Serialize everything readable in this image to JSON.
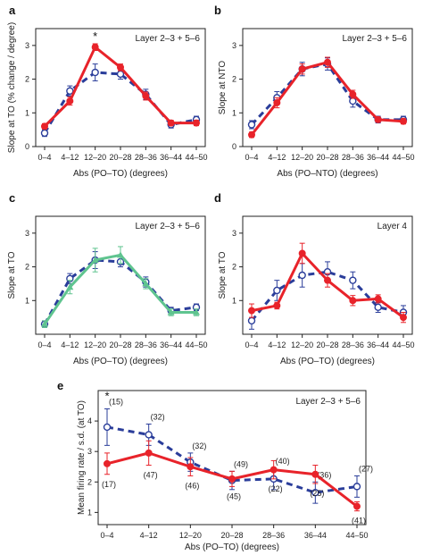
{
  "colors": {
    "red": "#e8232a",
    "blue": "#2a3d9a",
    "green": "#5fc48f"
  },
  "panels": [
    {
      "id": "a",
      "letter": "a",
      "tag": "Layer 2–3 + 5–6",
      "ylabel": "Slope at TO (% change / degree)",
      "xlabel": "Abs (PO–TO) (degrees)",
      "star_label": "*"
    },
    {
      "id": "b",
      "letter": "b",
      "tag": "Layer 2–3 + 5–6",
      "ylabel": "Slope at NTO",
      "xlabel": "Abs (PO–NTO) (degrees)"
    },
    {
      "id": "c",
      "letter": "c",
      "tag": "Layer 2–3 + 5–6",
      "ylabel": "Slope at TO",
      "xlabel": "Abs (PO–TO) (degrees)"
    },
    {
      "id": "d",
      "letter": "d",
      "tag": "Layer 4",
      "ylabel": "Slope at TO",
      "xlabel": "Abs (PO–TO) (degrees)"
    },
    {
      "id": "e",
      "letter": "e",
      "tag": "Layer 2–3 + 5–6",
      "ylabel": "Mean firing rate / s.d. (at TO)",
      "xlabel": "Abs (PO–TO) (degrees)",
      "star_label": "*"
    }
  ],
  "chart_data": [
    {
      "panel": "a",
      "type": "line",
      "categories": [
        "0–4",
        "4–12",
        "12–20",
        "20–28",
        "28–36",
        "36–44",
        "44–50"
      ],
      "ylim": [
        0,
        3.5
      ],
      "yticks": [
        "0",
        "1",
        "2",
        "3"
      ],
      "series": [
        {
          "color": "red",
          "style": "solid",
          "marker": "filled-circle",
          "values": [
            0.6,
            1.35,
            2.95,
            2.35,
            1.5,
            0.7,
            0.7
          ],
          "errors": [
            0.08,
            0.12,
            0.1,
            0.1,
            0.12,
            0.08,
            0.08
          ]
        },
        {
          "color": "blue",
          "style": "dashed",
          "marker": "open-circle",
          "values": [
            0.4,
            1.65,
            2.2,
            2.15,
            1.55,
            0.65,
            0.8
          ],
          "errors": [
            0.1,
            0.15,
            0.25,
            0.15,
            0.15,
            0.1,
            0.1
          ]
        }
      ],
      "annotations": [
        {
          "text": "*",
          "category": "12–20"
        }
      ]
    },
    {
      "panel": "b",
      "type": "line",
      "categories": [
        "0–4",
        "4–12",
        "12–20",
        "20–28",
        "28–36",
        "36–44",
        "44–50"
      ],
      "ylim": [
        0,
        3.5
      ],
      "yticks": [
        "0",
        "1",
        "2",
        "3"
      ],
      "series": [
        {
          "color": "red",
          "style": "solid",
          "marker": "filled-circle",
          "values": [
            0.35,
            1.3,
            2.3,
            2.5,
            1.55,
            0.8,
            0.75
          ],
          "errors": [
            0.08,
            0.15,
            0.15,
            0.15,
            0.12,
            0.08,
            0.08
          ]
        },
        {
          "color": "blue",
          "style": "dashed",
          "marker": "open-circle",
          "values": [
            0.65,
            1.45,
            2.3,
            2.45,
            1.35,
            0.8,
            0.8
          ],
          "errors": [
            0.12,
            0.18,
            0.2,
            0.18,
            0.18,
            0.1,
            0.1
          ]
        }
      ]
    },
    {
      "panel": "c",
      "type": "line",
      "categories": [
        "0–4",
        "4–12",
        "12–20",
        "20–28",
        "28–36",
        "36–44",
        "44–50"
      ],
      "ylim": [
        0,
        3.5
      ],
      "yticks": [
        "1",
        "2",
        "3"
      ],
      "series": [
        {
          "color": "green",
          "style": "solid",
          "marker": "triangle",
          "values": [
            0.3,
            1.4,
            2.2,
            2.35,
            1.5,
            0.65,
            0.65
          ],
          "errors": [
            0.1,
            0.2,
            0.35,
            0.25,
            0.15,
            0.1,
            0.1
          ]
        },
        {
          "color": "blue",
          "style": "dashed",
          "marker": "open-circle",
          "values": [
            0.3,
            1.65,
            2.2,
            2.15,
            1.55,
            0.7,
            0.8
          ],
          "errors": [
            0.1,
            0.15,
            0.25,
            0.15,
            0.15,
            0.1,
            0.1
          ]
        }
      ]
    },
    {
      "panel": "d",
      "type": "line",
      "categories": [
        "0–4",
        "4–12",
        "12–20",
        "20–28",
        "28–36",
        "36–44",
        "44–50"
      ],
      "ylim": [
        0,
        3.5
      ],
      "yticks": [
        "1",
        "2",
        "3"
      ],
      "series": [
        {
          "color": "red",
          "style": "solid",
          "marker": "filled-circle",
          "values": [
            0.7,
            0.85,
            2.4,
            1.6,
            1.0,
            1.05,
            0.5
          ],
          "errors": [
            0.2,
            0.1,
            0.3,
            0.2,
            0.15,
            0.12,
            0.15
          ]
        },
        {
          "color": "blue",
          "style": "dashed",
          "marker": "open-circle",
          "values": [
            0.4,
            1.3,
            1.75,
            1.85,
            1.6,
            0.8,
            0.65
          ],
          "errors": [
            0.25,
            0.3,
            0.35,
            0.3,
            0.25,
            0.15,
            0.2
          ]
        }
      ]
    },
    {
      "panel": "e",
      "type": "line",
      "categories": [
        "0–4",
        "4–12",
        "12–20",
        "20–28",
        "28–36",
        "36–44",
        "44–50"
      ],
      "ylim": [
        0.6,
        5.0
      ],
      "yticks": [
        "1",
        "2",
        "3",
        "4"
      ],
      "series": [
        {
          "color": "red",
          "style": "solid",
          "marker": "filled-circle",
          "values": [
            2.6,
            2.95,
            2.5,
            2.1,
            2.4,
            2.25,
            1.2
          ],
          "errors": [
            0.35,
            0.4,
            0.3,
            0.25,
            0.3,
            0.3,
            0.15
          ],
          "n_labels": [
            "(17)",
            "(47)",
            "(46)",
            "(45)",
            "(22)",
            "(25)",
            "(41)"
          ]
        },
        {
          "color": "blue",
          "style": "dashed",
          "marker": "open-circle",
          "values": [
            3.8,
            3.55,
            2.65,
            2.05,
            2.1,
            1.65,
            1.85
          ],
          "errors": [
            0.6,
            0.35,
            0.3,
            0.3,
            0.35,
            0.35,
            0.35
          ],
          "n_labels": [
            "(15)",
            "(32)",
            "(32)",
            "(49)",
            "(40)",
            "(36)",
            "(27)"
          ]
        }
      ],
      "annotations": [
        {
          "text": "*",
          "category": "0–4"
        }
      ]
    }
  ]
}
